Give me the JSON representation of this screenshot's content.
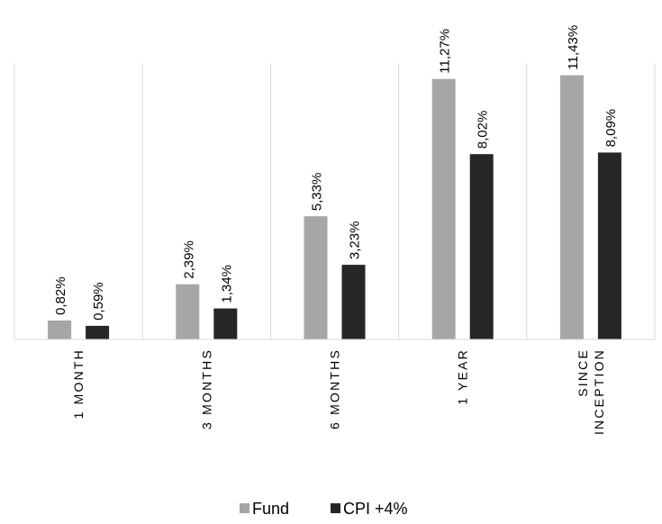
{
  "chart_data": {
    "type": "bar",
    "categories": [
      [
        "1 MONTH"
      ],
      [
        "3 MONTHS"
      ],
      [
        "6 MONTHS"
      ],
      [
        "1 YEAR"
      ],
      [
        "SINCE",
        "INCEPTION"
      ]
    ],
    "series": [
      {
        "name": "Fund",
        "color": "#a6a6a6",
        "values": [
          0.82,
          2.39,
          5.33,
          11.27,
          11.43
        ],
        "labels": [
          "0,82%",
          "2,39%",
          "5,33%",
          "11,27%",
          "11,43%"
        ]
      },
      {
        "name": "CPI +4%",
        "color": "#262626",
        "values": [
          0.59,
          1.34,
          3.23,
          8.02,
          8.09
        ],
        "labels": [
          "0,59%",
          "1,34%",
          "3,23%",
          "8,02%",
          "8,09%"
        ]
      }
    ],
    "title": "",
    "xlabel": "",
    "ylabel": "",
    "ylim": [
      0,
      12
    ],
    "grid": "vertical category separators",
    "legend_position": "bottom-center"
  }
}
